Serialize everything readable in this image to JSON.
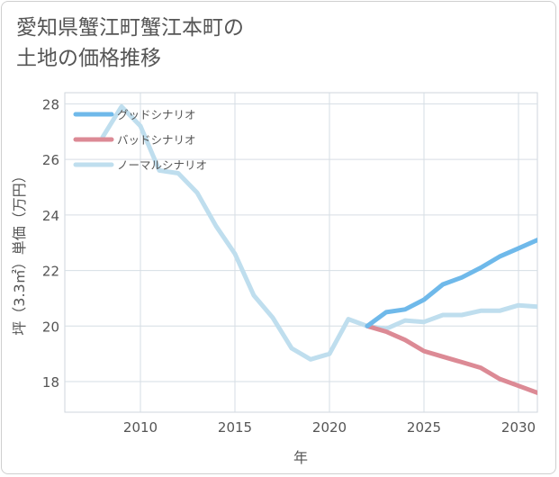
{
  "chart_data": {
    "type": "line",
    "title_lines": [
      "愛知県蟹江町蟹江本町の",
      "土地の価格推移"
    ],
    "xlabel": "年",
    "ylabel": "坪（3.3㎡）単価（万円）",
    "xlim": [
      2006,
      2031
    ],
    "ylim": [
      16.9,
      28.4
    ],
    "x_ticks": [
      2010,
      2015,
      2020,
      2025,
      2030
    ],
    "y_ticks": [
      18,
      20,
      22,
      24,
      26,
      28
    ],
    "grid": true,
    "legend_position": "top-left",
    "series": [
      {
        "name": "グッドシナリオ",
        "color": "#6fb9ea",
        "x": [
          2022,
          2023,
          2024,
          2025,
          2026,
          2027,
          2028,
          2029,
          2030,
          2031
        ],
        "y": [
          20.0,
          20.5,
          20.6,
          20.95,
          21.5,
          21.75,
          22.1,
          22.5,
          22.8,
          23.1
        ]
      },
      {
        "name": "バッドシナリオ",
        "color": "#dc8a95",
        "x": [
          2022,
          2023,
          2024,
          2025,
          2026,
          2027,
          2028,
          2029,
          2030,
          2031
        ],
        "y": [
          20.0,
          19.8,
          19.5,
          19.1,
          18.9,
          18.7,
          18.5,
          18.1,
          17.85,
          17.6
        ]
      },
      {
        "name": "ノーマルシナリオ",
        "color": "#bfdeee",
        "x": [
          2008,
          2009,
          2010,
          2011,
          2012,
          2013,
          2014,
          2015,
          2016,
          2017,
          2018,
          2019,
          2020,
          2021,
          2022,
          2023,
          2024,
          2025,
          2026,
          2027,
          2028,
          2029,
          2030,
          2031
        ],
        "y": [
          26.8,
          27.9,
          27.2,
          25.6,
          25.5,
          24.8,
          23.6,
          22.6,
          21.1,
          20.3,
          19.2,
          18.8,
          19.0,
          20.25,
          20.0,
          19.9,
          20.2,
          20.15,
          20.4,
          20.4,
          20.55,
          20.55,
          20.75,
          20.7
        ]
      }
    ]
  }
}
